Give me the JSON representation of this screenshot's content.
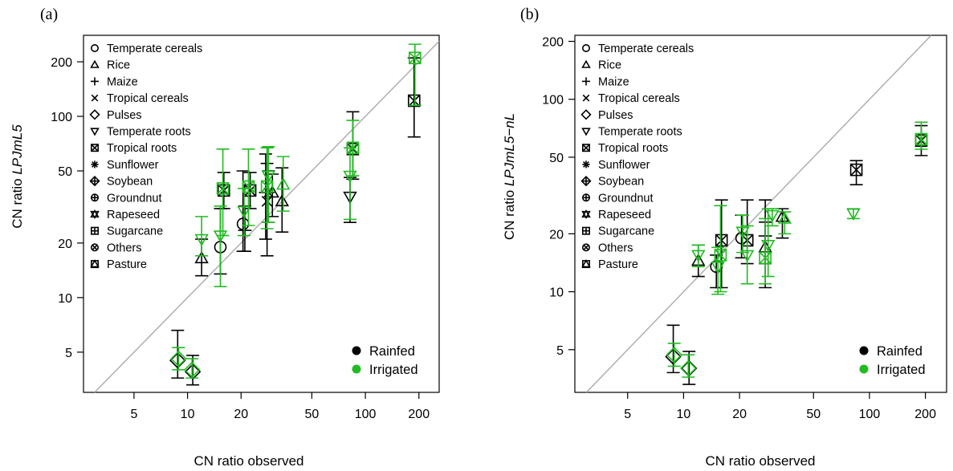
{
  "chart_data": [
    {
      "type": "scatter",
      "panel_label": "(a)",
      "xlabel": "CN ratio observed",
      "ylabel_prefix": "CN ratio ",
      "ylabel_model": "LPJmL5",
      "xscale": "log",
      "yscale": "log",
      "xlim": [
        2.6,
        260
      ],
      "ylim": [
        3,
        280
      ],
      "xticks": [
        5,
        10,
        20,
        50,
        100,
        200
      ],
      "yticks": [
        5,
        10,
        20,
        50,
        100,
        200
      ],
      "reference_line": "1:1",
      "grid": false,
      "series": [
        {
          "name": "Rainfed",
          "color": "#000000",
          "points": [
            {
              "crop": "Pulses",
              "x": 8.8,
              "y": 4.5,
              "ymin": 3.6,
              "ymax": 6.6
            },
            {
              "crop": "Pulses",
              "x": 10.7,
              "y": 3.9,
              "ymin": 3.3,
              "ymax": 4.8
            },
            {
              "crop": "Rice",
              "x": 12.0,
              "y": 16.5,
              "ymin": 13.2,
              "ymax": 21.0
            },
            {
              "crop": "Temperate cereals",
              "x": 15.3,
              "y": 19.0,
              "ymin": 13.5,
              "ymax": 31.0
            },
            {
              "crop": "Tropical roots",
              "x": 16.0,
              "y": 39.0,
              "ymin": 31.0,
              "ymax": 49.0
            },
            {
              "crop": "Temperate cereals",
              "x": 20.5,
              "y": 25.5,
              "ymin": 18.0,
              "ymax": 50.0
            },
            {
              "crop": "Maize",
              "x": 21.0,
              "y": 23.5,
              "ymin": 18.0,
              "ymax": 32.0
            },
            {
              "crop": "Tropical roots",
              "x": 22.5,
              "y": 39.0,
              "ymin": 31.0,
              "ymax": 49.0
            },
            {
              "crop": "Maize",
              "x": 27.5,
              "y": 38.0,
              "ymin": 21.0,
              "ymax": 62.0
            },
            {
              "crop": "Tropical cereals",
              "x": 28.0,
              "y": 34.0,
              "ymin": 17.0,
              "ymax": 55.0
            },
            {
              "crop": "Sunflower",
              "x": 28.5,
              "y": 38.0,
              "ymin": 26.0,
              "ymax": 50.0
            },
            {
              "crop": "Rice",
              "x": 30.0,
              "y": 38.0,
              "ymin": 28.0,
              "ymax": 48.0
            },
            {
              "crop": "Rice",
              "x": 34.0,
              "y": 34.0,
              "ymin": 23.0,
              "ymax": 52.0
            },
            {
              "crop": "Temperate roots",
              "x": 82.0,
              "y": 36.0,
              "ymin": 26.0,
              "ymax": 46.0
            },
            {
              "crop": "Tropical roots",
              "x": 85.0,
              "y": 66.0,
              "ymin": 45.0,
              "ymax": 106.0
            },
            {
              "crop": "Tropical roots",
              "x": 188.0,
              "y": 122.0,
              "ymin": 77.0,
              "ymax": 210.0
            }
          ]
        },
        {
          "name": "Irrigated",
          "color": "#22bb22",
          "points": [
            {
              "crop": "Pulses",
              "x": 8.9,
              "y": 4.6,
              "ymin": 4.0,
              "ymax": 5.3
            },
            {
              "crop": "Pulses",
              "x": 10.6,
              "y": 4.0,
              "ymin": 3.6,
              "ymax": 4.6
            },
            {
              "crop": "Temperate roots",
              "x": 12.0,
              "y": 21.0,
              "ymin": 17.0,
              "ymax": 28.0
            },
            {
              "crop": "Tropical roots",
              "x": 15.8,
              "y": 40.0,
              "ymin": 22.0,
              "ymax": 66.0
            },
            {
              "crop": "Temperate roots",
              "x": 15.3,
              "y": 22.0,
              "ymin": 11.5,
              "ymax": 32.0
            },
            {
              "crop": "Temperate roots",
              "x": 20.8,
              "y": 30.0,
              "ymin": 22.0,
              "ymax": 40.0
            },
            {
              "crop": "Tropical roots",
              "x": 22.0,
              "y": 41.0,
              "ymin": 25.0,
              "ymax": 66.0
            },
            {
              "crop": "Tropical roots",
              "x": 28.0,
              "y": 41.0,
              "ymin": 24.0,
              "ymax": 67.0
            },
            {
              "crop": "Temperate roots",
              "x": 28.5,
              "y": 47.0,
              "ymin": 26.0,
              "ymax": 68.0
            },
            {
              "crop": "Rice",
              "x": 34.5,
              "y": 42.0,
              "ymin": 30.0,
              "ymax": 60.0
            },
            {
              "crop": "Temperate roots",
              "x": 82.0,
              "y": 47.0,
              "ymin": 27.0,
              "ymax": 67.0
            },
            {
              "crop": "Tropical roots",
              "x": 85.0,
              "y": 67.0,
              "ymin": 47.0,
              "ymax": 95.0
            },
            {
              "crop": "Tropical roots",
              "x": 190.0,
              "y": 210.0,
              "ymin": 115.0,
              "ymax": 250.0
            }
          ]
        }
      ]
    },
    {
      "type": "scatter",
      "panel_label": "(b)",
      "xlabel": "CN ratio observed",
      "ylabel_prefix": "CN ratio ",
      "ylabel_model": "LPJmL5−nL",
      "xscale": "log",
      "yscale": "log",
      "xlim": [
        2.6,
        260
      ],
      "ylim": [
        3,
        215
      ],
      "xticks": [
        5,
        10,
        20,
        50,
        100,
        200
      ],
      "yticks": [
        5,
        10,
        20,
        50,
        100,
        200
      ],
      "reference_line": "1:1",
      "grid": false,
      "series": [
        {
          "name": "Rainfed",
          "color": "#000000",
          "points": [
            {
              "crop": "Pulses",
              "x": 8.8,
              "y": 4.6,
              "ymin": 3.8,
              "ymax": 6.7
            },
            {
              "crop": "Pulses",
              "x": 10.7,
              "y": 4.0,
              "ymin": 3.3,
              "ymax": 4.9
            },
            {
              "crop": "Rice",
              "x": 12.0,
              "y": 14.5,
              "ymin": 12.0,
              "ymax": 17.5
            },
            {
              "crop": "Temperate cereals",
              "x": 15.0,
              "y": 13.5,
              "ymin": 10.5,
              "ymax": 15.5
            },
            {
              "crop": "Tropical roots",
              "x": 16.0,
              "y": 18.5,
              "ymin": 10.5,
              "ymax": 30.0
            },
            {
              "crop": "Temperate cereals",
              "x": 20.5,
              "y": 19.0,
              "ymin": 15.0,
              "ymax": 25.0
            },
            {
              "crop": "Tropical roots",
              "x": 22.0,
              "y": 18.5,
              "ymin": 14.0,
              "ymax": 30.0
            },
            {
              "crop": "Rice",
              "x": 27.5,
              "y": 17.0,
              "ymin": 10.5,
              "ymax": 30.0
            },
            {
              "crop": "Maize",
              "x": 27.5,
              "y": 19.5,
              "ymin": 14.0,
              "ymax": 23.0
            },
            {
              "crop": "Rice",
              "x": 34.0,
              "y": 24.5,
              "ymin": 19.0,
              "ymax": 27.0
            },
            {
              "crop": "Tropical roots",
              "x": 85.0,
              "y": 43.0,
              "ymin": 36.0,
              "ymax": 48.0
            },
            {
              "crop": "Tropical roots",
              "x": 190.0,
              "y": 61.0,
              "ymin": 51.0,
              "ymax": 73.0
            }
          ]
        },
        {
          "name": "Irrigated",
          "color": "#22bb22",
          "points": [
            {
              "crop": "Pulses",
              "x": 8.9,
              "y": 4.7,
              "ymin": 4.1,
              "ymax": 5.4
            },
            {
              "crop": "Pulses",
              "x": 10.6,
              "y": 4.0,
              "ymin": 3.6,
              "ymax": 4.7
            },
            {
              "crop": "Temperate roots",
              "x": 12.0,
              "y": 15.5,
              "ymin": 13.5,
              "ymax": 17.5
            },
            {
              "crop": "Temperate roots",
              "x": 15.3,
              "y": 13.5,
              "ymin": 9.7,
              "ymax": 17.0
            },
            {
              "crop": "Tropical roots",
              "x": 15.8,
              "y": 15.5,
              "ymin": 10.0,
              "ymax": 28.0
            },
            {
              "crop": "Temperate roots",
              "x": 20.8,
              "y": 20.5,
              "ymin": 16.0,
              "ymax": 25.0
            },
            {
              "crop": "Temperate roots",
              "x": 22.0,
              "y": 15.5,
              "ymin": 11.0,
              "ymax": 22.0
            },
            {
              "crop": "Tropical roots",
              "x": 27.5,
              "y": 15.0,
              "ymin": 11.0,
              "ymax": 24.0
            },
            {
              "crop": "Temperate roots",
              "x": 28.5,
              "y": 17.5,
              "ymin": 12.0,
              "ymax": 27.0
            },
            {
              "crop": "Temperate roots",
              "x": 30.0,
              "y": 25.0,
              "ymin": 22.0,
              "ymax": 27.0
            },
            {
              "crop": "Rice",
              "x": 35.0,
              "y": 24.0,
              "ymin": 20.0,
              "ymax": 26.0
            },
            {
              "crop": "Temperate roots",
              "x": 82.0,
              "y": 25.5,
              "ymin": 24.0,
              "ymax": 27.0
            },
            {
              "crop": "Tropical roots",
              "x": 190.0,
              "y": 62.0,
              "ymin": 55.0,
              "ymax": 76.0
            }
          ]
        }
      ]
    }
  ],
  "legend": {
    "crops": [
      {
        "label": "Temperate cereals",
        "symbol": "circle"
      },
      {
        "label": "Rice",
        "symbol": "triangle"
      },
      {
        "label": "Maize",
        "symbol": "plus"
      },
      {
        "label": "Tropical cereals",
        "symbol": "cross"
      },
      {
        "label": "Pulses",
        "symbol": "diamond"
      },
      {
        "label": "Temperate roots",
        "symbol": "triangle-down"
      },
      {
        "label": "Tropical roots",
        "symbol": "square-cross"
      },
      {
        "label": "Sunflower",
        "symbol": "asterisk"
      },
      {
        "label": "Soybean",
        "symbol": "diamond-plus"
      },
      {
        "label": "Groundnut",
        "symbol": "circle-plus"
      },
      {
        "label": "Rapeseed",
        "symbol": "star-of-david"
      },
      {
        "label": "Sugarcane",
        "symbol": "square-plus"
      },
      {
        "label": "Others",
        "symbol": "circle-cross"
      },
      {
        "label": "Pasture",
        "symbol": "square-triangle"
      }
    ],
    "irrigation": [
      {
        "label": "Rainfed",
        "color": "#000000"
      },
      {
        "label": "Irrigated",
        "color": "#22bb22"
      }
    ],
    "crop_legend_placement": "top-left",
    "irrigation_legend_placement": "bottom-right"
  }
}
